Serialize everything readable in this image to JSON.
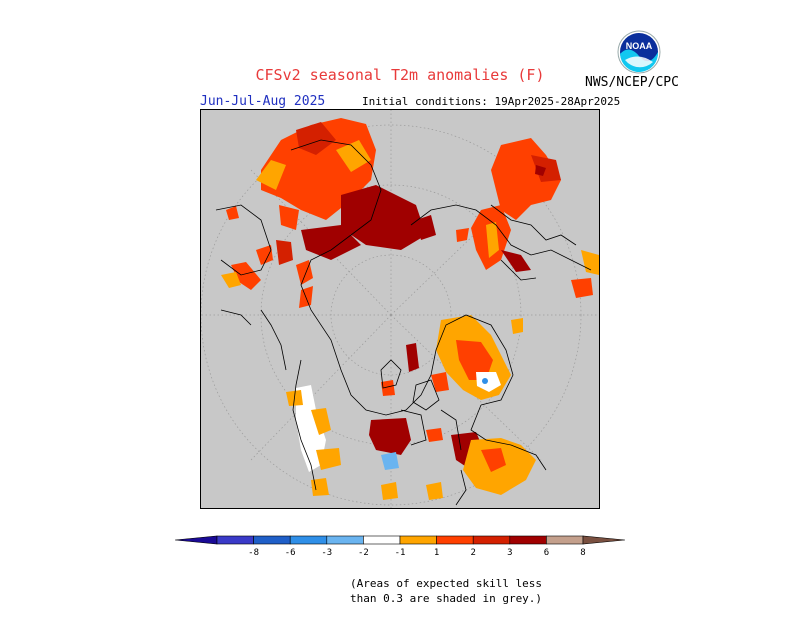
{
  "header": {
    "title": "CFSv2 seasonal T2m anomalies (F)",
    "season": "Jun-Jul-Aug 2025",
    "initial_conditions": "Initial conditions: 19Apr2025-28Apr2025",
    "agency": "NWS/NCEP/CPC",
    "logo_text": "NOAA"
  },
  "map": {
    "projection": "north polar stereographic",
    "background_color": "#c8c8c8",
    "coastline_color": "#000000"
  },
  "legend": {
    "tick_labels": [
      "-8",
      "-6",
      "-3",
      "-2",
      "-1",
      "1",
      "2",
      "3",
      "6",
      "8"
    ],
    "colors": [
      "#1a0a96",
      "#3a3ac8",
      "#1f5fc8",
      "#2f8fe8",
      "#6ab4f0",
      "#ffffff",
      "#ffa500",
      "#ff4000",
      "#d42000",
      "#a00000",
      "#c4a08c",
      "#7a5040"
    ]
  },
  "footnote": {
    "line1": "(Areas of expected skill less",
    "line2": "than 0.3 are shaded in grey.)"
  }
}
